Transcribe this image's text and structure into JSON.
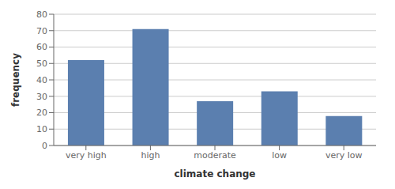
{
  "chart_data": {
    "type": "bar",
    "categories": [
      "very high",
      "high",
      "moderate",
      "low",
      "very low"
    ],
    "values": [
      52,
      71,
      27,
      33,
      18
    ],
    "color": "#5b7faf",
    "xlabel": "climate change",
    "ylabel": "frequency",
    "ylim": [
      0,
      80
    ],
    "yticks": [
      0,
      10,
      20,
      30,
      40,
      50,
      60,
      70,
      80
    ],
    "grid": true
  }
}
